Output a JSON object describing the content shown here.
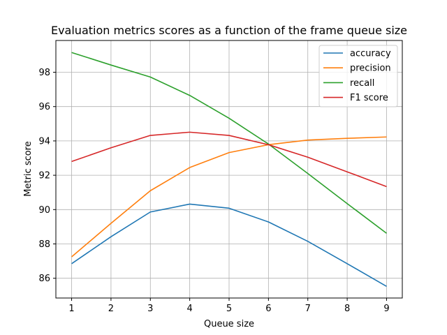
{
  "chart_data": {
    "type": "line",
    "title": "Evaluation metrics scores as a function of the frame queue size",
    "xlabel": "Queue size",
    "ylabel": "Metric score",
    "x": [
      1,
      2,
      3,
      4,
      5,
      6,
      7,
      8,
      9
    ],
    "xlim": [
      0.6,
      9.4
    ],
    "ylim": [
      84.85,
      99.85
    ],
    "xticks": [
      1,
      2,
      3,
      4,
      5,
      6,
      7,
      8,
      9
    ],
    "yticks": [
      86,
      88,
      90,
      92,
      94,
      96,
      98
    ],
    "grid": true,
    "legend_position": "top-right",
    "series": [
      {
        "name": "accuracy",
        "color": "#1f77b4",
        "values": [
          86.85,
          88.42,
          89.86,
          90.32,
          90.08,
          89.28,
          88.15,
          86.85,
          85.53
        ]
      },
      {
        "name": "precision",
        "color": "#ff7f0e",
        "values": [
          87.25,
          89.2,
          91.1,
          92.45,
          93.32,
          93.78,
          94.05,
          94.15,
          94.23
        ]
      },
      {
        "name": "recall",
        "color": "#2ca02c",
        "values": [
          99.15,
          98.42,
          97.72,
          96.65,
          95.32,
          93.82,
          92.1,
          90.35,
          88.62
        ]
      },
      {
        "name": "F1 score",
        "color": "#d62728",
        "values": [
          92.8,
          93.6,
          94.32,
          94.51,
          94.32,
          93.78,
          93.05,
          92.2,
          91.34
        ]
      }
    ]
  }
}
